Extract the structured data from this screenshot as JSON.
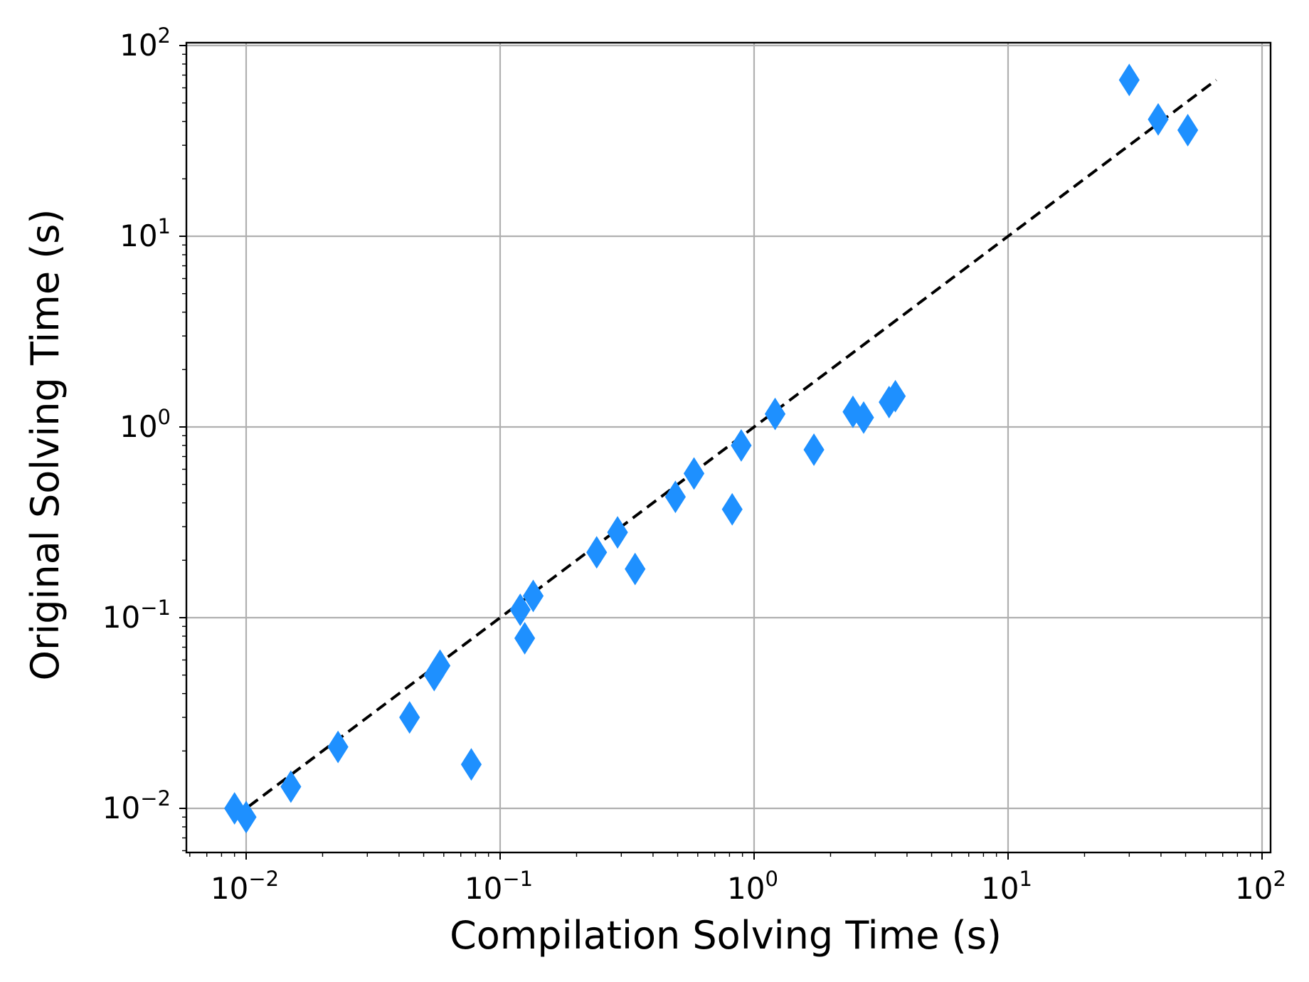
{
  "chart_data": {
    "type": "scatter",
    "title": "",
    "xlabel": "Compilation Solving Time (s)",
    "ylabel": "Original Solving Time (s)",
    "xscale": "log",
    "yscale": "log",
    "xlim": [
      0.006,
      100
    ],
    "ylim": [
      0.006,
      100
    ],
    "grid": true,
    "legend": "none",
    "x_ticks": [
      {
        "base": "10",
        "exp": "−2",
        "value": 0.01
      },
      {
        "base": "10",
        "exp": "−1",
        "value": 0.1
      },
      {
        "base": "10",
        "exp": "0",
        "value": 1
      },
      {
        "base": "10",
        "exp": "1",
        "value": 10
      },
      {
        "base": "10",
        "exp": "2",
        "value": 100
      }
    ],
    "y_ticks": [
      {
        "base": "10",
        "exp": "−2",
        "value": 0.01
      },
      {
        "base": "10",
        "exp": "−1",
        "value": 0.1
      },
      {
        "base": "10",
        "exp": "0",
        "value": 1
      },
      {
        "base": "10",
        "exp": "1",
        "value": 10
      },
      {
        "base": "10",
        "exp": "2",
        "value": 100
      }
    ],
    "series": [
      {
        "marker": "diamond",
        "color": "#1e90ff",
        "points": [
          {
            "x": 0.009,
            "y": 0.01
          },
          {
            "x": 0.01,
            "y": 0.009
          },
          {
            "x": 0.015,
            "y": 0.013
          },
          {
            "x": 0.023,
            "y": 0.021
          },
          {
            "x": 0.044,
            "y": 0.03
          },
          {
            "x": 0.055,
            "y": 0.05
          },
          {
            "x": 0.058,
            "y": 0.056
          },
          {
            "x": 0.077,
            "y": 0.017
          },
          {
            "x": 0.12,
            "y": 0.11
          },
          {
            "x": 0.125,
            "y": 0.078
          },
          {
            "x": 0.135,
            "y": 0.13
          },
          {
            "x": 0.24,
            "y": 0.22
          },
          {
            "x": 0.29,
            "y": 0.28
          },
          {
            "x": 0.34,
            "y": 0.18
          },
          {
            "x": 0.49,
            "y": 0.43
          },
          {
            "x": 0.58,
            "y": 0.57
          },
          {
            "x": 0.82,
            "y": 0.37
          },
          {
            "x": 0.89,
            "y": 0.8
          },
          {
            "x": 1.21,
            "y": 1.17
          },
          {
            "x": 1.72,
            "y": 0.76
          },
          {
            "x": 2.45,
            "y": 1.2
          },
          {
            "x": 2.7,
            "y": 1.12
          },
          {
            "x": 3.4,
            "y": 1.35
          },
          {
            "x": 3.6,
            "y": 1.45
          },
          {
            "x": 30,
            "y": 66
          },
          {
            "x": 39,
            "y": 41
          },
          {
            "x": 51,
            "y": 36
          }
        ]
      }
    ],
    "reference_line": {
      "style": "dashed",
      "color": "#000000",
      "x": [
        0.009,
        66
      ],
      "y": [
        0.009,
        66
      ]
    },
    "colors": {
      "marker": "#1e90ff",
      "grid": "#b0b0b0",
      "axes": "#000000"
    }
  }
}
